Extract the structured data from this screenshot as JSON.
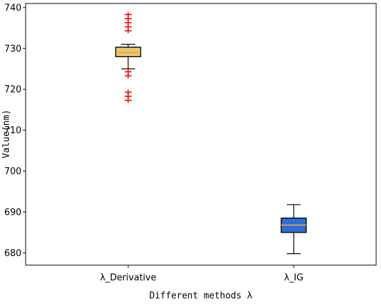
{
  "chart_data": {
    "type": "box",
    "xlabel": "Different methods λ",
    "ylabel": "Value(nm)",
    "ylim": [
      677,
      741
    ],
    "yticks": [
      680,
      690,
      700,
      710,
      720,
      730,
      740
    ],
    "grid": false,
    "legend": "none",
    "categories": [
      "λ_Derivative",
      "λ_IG"
    ],
    "boxes": [
      {
        "category": "λ_Derivative",
        "whisker_low": 725,
        "q1": 728,
        "median": 729,
        "q3": 730.3,
        "whisker_high": 731,
        "outliers": [
          738.3,
          737.3,
          736.3,
          735.3,
          734.3,
          724.3,
          723.3,
          719.3,
          718.3,
          717.3
        ],
        "fill": "#e8c874"
      },
      {
        "category": "λ_IG",
        "whisker_low": 679.8,
        "q1": 685,
        "median": 686.8,
        "q3": 688.5,
        "whisker_high": 691.8,
        "outliers": [],
        "fill": "#2e6ed8"
      }
    ],
    "median_color": "#f0a030",
    "outlier_color": "#ff0000"
  }
}
